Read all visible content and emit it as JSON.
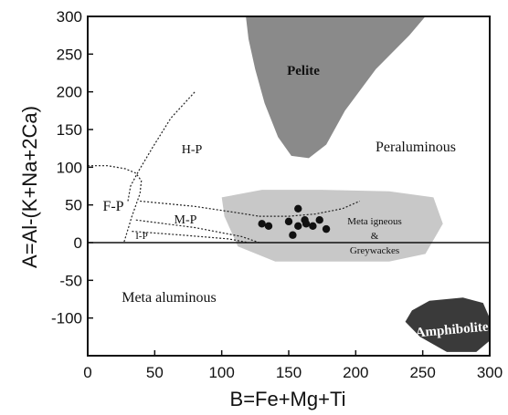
{
  "chart_data": {
    "type": "scatter",
    "title": "",
    "xlabel": "B=Fe+Mg+Ti",
    "ylabel": "A=Al-(K+Na+2Ca)",
    "xlim": [
      0,
      300
    ],
    "ylim": [
      -150,
      300
    ],
    "xticks": [
      "0",
      "50",
      "100",
      "150",
      "200",
      "250",
      "300"
    ],
    "yticks": [
      "300",
      "250",
      "200",
      "150",
      "100",
      "50",
      "0",
      "-50",
      "-100"
    ],
    "zero_line_y": 0,
    "points": [
      {
        "x": 130,
        "y": 25
      },
      {
        "x": 135,
        "y": 22
      },
      {
        "x": 150,
        "y": 28
      },
      {
        "x": 153,
        "y": 10
      },
      {
        "x": 157,
        "y": 45
      },
      {
        "x": 157,
        "y": 22
      },
      {
        "x": 162,
        "y": 30
      },
      {
        "x": 163,
        "y": 25
      },
      {
        "x": 168,
        "y": 22
      },
      {
        "x": 173,
        "y": 30
      },
      {
        "x": 178,
        "y": 18
      }
    ],
    "regions": [
      {
        "label": "Pelite",
        "fill": "#8a8a8a"
      },
      {
        "label": "Meta igneous",
        "label2": "&",
        "label3": "Greywackes",
        "fill": "#c8c8c8"
      },
      {
        "label": "Amphibolite",
        "fill": "#3a3a3a"
      }
    ],
    "labels": {
      "peraluminous": "Peraluminous",
      "meta_aluminous": "Meta aluminous",
      "hp": "H-P",
      "fp": "F-P",
      "mp": "M-P",
      "lp": "I-P"
    }
  }
}
